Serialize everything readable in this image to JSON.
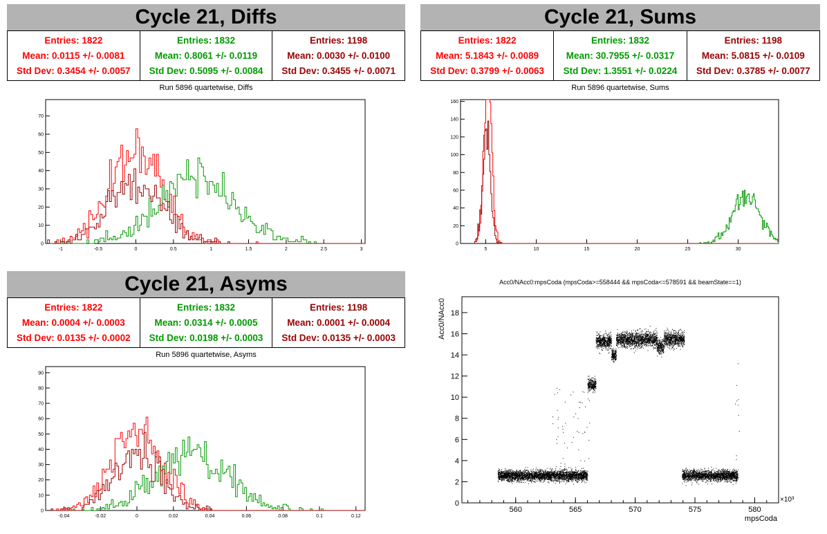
{
  "colors": {
    "series0": "#ff0000",
    "series1": "#009900",
    "series2": "#990000",
    "title_bg": "#b3b3b3",
    "scatter": "#000000"
  },
  "panels": {
    "diffs": {
      "title": "Cycle 21, Diffs",
      "subtitle": "Run 5896 quartetwise, Diffs",
      "stats": [
        {
          "entries": "Entries: 1822",
          "mean": "Mean: 0.0115 +/- 0.0081",
          "std": "Std Dev: 0.3454 +/- 0.0057"
        },
        {
          "entries": "Entries: 1832",
          "mean": "Mean: 0.8061 +/- 0.0119",
          "std": "Std Dev: 0.5095 +/- 0.0084"
        },
        {
          "entries": "Entries: 1198",
          "mean": "Mean: 0.0030 +/- 0.0100",
          "std": "Std Dev: 0.3455 +/- 0.0071"
        }
      ]
    },
    "sums": {
      "title": "Cycle 21, Sums",
      "subtitle": "Run 5896 quartetwise, Sums",
      "stats": [
        {
          "entries": "Entries: 1822",
          "mean": "Mean: 5.1843 +/- 0.0089",
          "std": "Std Dev: 0.3799 +/- 0.0063"
        },
        {
          "entries": "Entries: 1832",
          "mean": "Mean: 30.7955 +/- 0.0317",
          "std": "Std Dev: 1.3551 +/- 0.0224"
        },
        {
          "entries": "Entries: 1198",
          "mean": "Mean: 5.0815 +/- 0.0109",
          "std": "Std Dev: 0.3785 +/- 0.0077"
        }
      ]
    },
    "asyms": {
      "title": "Cycle 21, Asyms",
      "subtitle": "Run 5896 quartetwise, Asyms",
      "stats": [
        {
          "entries": "Entries: 1822",
          "mean": "Mean: 0.0004 +/- 0.0003",
          "std": "Std Dev: 0.0135 +/- 0.0002"
        },
        {
          "entries": "Entries: 1832",
          "mean": "Mean: 0.0314 +/- 0.0005",
          "std": "Std Dev: 0.0198 +/- 0.0003"
        },
        {
          "entries": "Entries: 1198",
          "mean": "Mean: 0.0001 +/- 0.0004",
          "std": "Std Dev: 0.0135 +/- 0.0003"
        }
      ]
    },
    "scatter": {
      "title": "Acc0/NAcc0:mpsCoda (mpsCoda>=558444 && mpsCoda<=578591 && beamState==1)",
      "xlabel": "mpsCoda",
      "ylabel": "Acc0/NAcc0",
      "xexp": "×10³"
    }
  },
  "chart_data": [
    {
      "type": "histogram",
      "id": "diffs",
      "title": "Run 5896 quartetwise, Diffs",
      "xlim": [
        -1.2,
        3.05
      ],
      "ylim": [
        0,
        79
      ],
      "xticks": [
        "-1",
        "-0.5",
        "0",
        "0.5",
        "1",
        "1.5",
        "2",
        "2.5",
        "3"
      ],
      "yticks": [
        "0",
        "10",
        "20",
        "30",
        "40",
        "50",
        "60",
        "70"
      ],
      "series": [
        {
          "entries": 1822,
          "mean": 0.0115,
          "std": 0.3454,
          "binwidth": 0.025
        },
        {
          "entries": 1832,
          "mean": 0.8061,
          "std": 0.5095,
          "binwidth": 0.025
        },
        {
          "entries": 1198,
          "mean": 0.003,
          "std": 0.3455,
          "binwidth": 0.025
        }
      ]
    },
    {
      "type": "histogram",
      "id": "sums",
      "title": "Run 5896 quartetwise, Sums",
      "xlim": [
        2.5,
        34
      ],
      "ylim": [
        0,
        162
      ],
      "xticks": [
        "5",
        "10",
        "15",
        "20",
        "25",
        "30"
      ],
      "yticks": [
        "0",
        "20",
        "40",
        "60",
        "80",
        "100",
        "120",
        "140",
        "160"
      ],
      "series": [
        {
          "entries": 1822,
          "mean": 5.1843,
          "std": 0.3799,
          "binwidth": 0.1
        },
        {
          "entries": 1832,
          "mean": 30.7955,
          "std": 1.3551,
          "binwidth": 0.1
        },
        {
          "entries": 1198,
          "mean": 5.0815,
          "std": 0.3785,
          "binwidth": 0.1
        }
      ]
    },
    {
      "type": "histogram",
      "id": "asyms",
      "title": "Run 5896 quartetwise, Asyms",
      "xlim": [
        -0.05,
        0.125
      ],
      "ylim": [
        0,
        94
      ],
      "xticks": [
        "-0.04",
        "-0.02",
        "0",
        "0.02",
        "0.04",
        "0.06",
        "0.08",
        "0.1",
        "0.12"
      ],
      "yticks": [
        "0",
        "10",
        "20",
        "30",
        "40",
        "50",
        "60",
        "70",
        "80",
        "90"
      ],
      "series": [
        {
          "entries": 1822,
          "mean": 0.0004,
          "std": 0.0135,
          "binwidth": 0.001
        },
        {
          "entries": 1832,
          "mean": 0.0314,
          "std": 0.0198,
          "binwidth": 0.001
        },
        {
          "entries": 1198,
          "mean": 0.0001,
          "std": 0.0135,
          "binwidth": 0.001
        }
      ]
    },
    {
      "type": "scatter",
      "id": "scatter",
      "title": "Acc0/NAcc0:mpsCoda (mpsCoda>=558444 && mpsCoda<=578591 && beamState==1)",
      "xlabel": "mpsCoda",
      "ylabel": "Acc0/NAcc0",
      "xlim": [
        555.5,
        582
      ],
      "ylim": [
        0,
        19.5
      ],
      "xticks": [
        "560",
        "565",
        "570",
        "575",
        "580"
      ],
      "yticks": [
        "0",
        "2",
        "4",
        "6",
        "8",
        "10",
        "12",
        "14",
        "16",
        "18"
      ],
      "clusters": [
        {
          "x": [
            558.5,
            566.0
          ],
          "y_mean": 2.6,
          "y_spread": 0.5
        },
        {
          "x": [
            566.0,
            566.7
          ],
          "y_mean": 11.2,
          "y_spread": 0.6
        },
        {
          "x": [
            566.7,
            568.0
          ],
          "y_mean": 15.3,
          "y_spread": 0.7
        },
        {
          "x": [
            568.0,
            568.4
          ],
          "y_mean": 14.0,
          "y_spread": 0.6
        },
        {
          "x": [
            568.4,
            571.8
          ],
          "y_mean": 15.5,
          "y_spread": 0.7
        },
        {
          "x": [
            571.8,
            572.4
          ],
          "y_mean": 14.8,
          "y_spread": 0.7
        },
        {
          "x": [
            572.4,
            574.1
          ],
          "y_mean": 15.5,
          "y_spread": 0.7
        },
        {
          "x": [
            573.9,
            578.6
          ],
          "y_mean": 2.6,
          "y_spread": 0.5
        }
      ]
    }
  ]
}
